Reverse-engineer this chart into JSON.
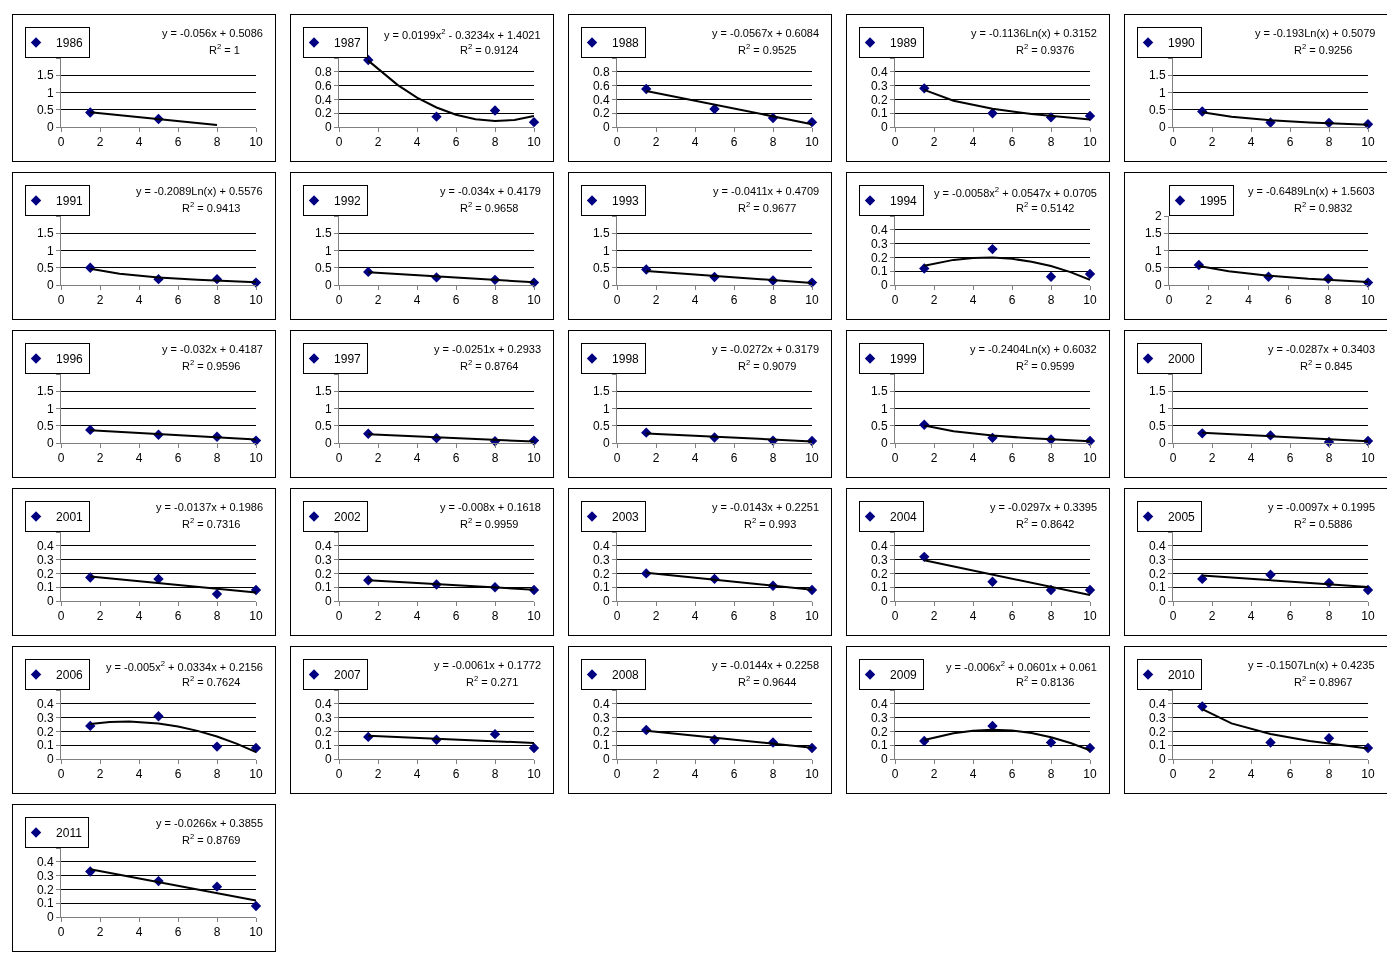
{
  "chart_data": [
    {
      "type": "scatter",
      "xlim": [
        0,
        10
      ],
      "xticks": [
        0,
        2,
        4,
        6,
        8,
        10
      ],
      "ylim": [
        0,
        2
      ],
      "yticks": [
        0,
        0.5,
        1,
        1.5,
        {
          "value": 2,
          "label": null
        }
      ],
      "grid": "y",
      "legend": "top left",
      "annotations": [
        "y = -0.056x + 0.5086",
        "R$^{2}$ = 1"
      ],
      "series": [
        {
          "name": "1986",
          "type": "scatter",
          "marker": "diamond",
          "color": "#000080",
          "x": [
            1.5,
            5
          ],
          "values": [
            0.42,
            0.23
          ]
        },
        {
          "type": "line",
          "color": "#000000",
          "x": [
            1.5,
            8
          ],
          "values": [
            0.425,
            0.061
          ]
        }
      ]
    },
    {
      "type": "scatter",
      "xlim": [
        0,
        10
      ],
      "xticks": [
        0,
        2,
        4,
        6,
        8,
        10
      ],
      "ylim": [
        0,
        1
      ],
      "yticks": [
        0,
        0.2,
        0.4,
        0.6,
        0.8,
        {
          "value": 1,
          "label": null
        }
      ],
      "grid": "y",
      "legend": "top left",
      "annotations": [
        "y = 0.0199x$^{2}$ - 0.3234x + 1.4021",
        "R$^{2}$ = 0.9124"
      ],
      "series": [
        {
          "name": "1987",
          "type": "scatter",
          "marker": "diamond",
          "color": "#000080",
          "x": [
            1.5,
            5,
            8,
            10
          ],
          "values": [
            0.97,
            0.15,
            0.24,
            0.07
          ]
        },
        {
          "type": "line",
          "color": "#000000",
          "x": [
            1.5,
            3,
            4,
            5,
            6,
            7,
            8,
            9,
            10
          ],
          "values": [
            0.962,
            0.611,
            0.427,
            0.283,
            0.178,
            0.113,
            0.088,
            0.103,
            0.158
          ]
        }
      ]
    },
    {
      "type": "scatter",
      "xlim": [
        0,
        10
      ],
      "xticks": [
        0,
        2,
        4,
        6,
        8,
        10
      ],
      "ylim": [
        0,
        1
      ],
      "yticks": [
        0,
        0.2,
        0.4,
        0.6,
        0.8,
        {
          "value": 1,
          "label": null
        }
      ],
      "grid": "y",
      "legend": "top left",
      "annotations": [
        "y = -0.0567x + 0.6084",
        "R$^{2}$ = 0.9525"
      ],
      "series": [
        {
          "name": "1988",
          "type": "scatter",
          "marker": "diamond",
          "color": "#000080",
          "x": [
            1.5,
            5,
            8,
            10
          ],
          "values": [
            0.55,
            0.26,
            0.13,
            0.07
          ]
        },
        {
          "type": "line",
          "color": "#000000",
          "x": [
            1.5,
            10
          ],
          "values": [
            0.523,
            0.041
          ]
        }
      ]
    },
    {
      "type": "scatter",
      "xlim": [
        0,
        10
      ],
      "xticks": [
        0,
        2,
        4,
        6,
        8,
        10
      ],
      "ylim": [
        0,
        0.5
      ],
      "yticks": [
        0,
        0.1,
        0.2,
        0.3,
        0.4,
        {
          "value": 0.5,
          "label": null
        }
      ],
      "grid": "y",
      "legend": "top left",
      "annotations": [
        "y = -0.1136Ln(x) + 0.3152",
        "R$^{2}$ = 0.9376"
      ],
      "series": [
        {
          "name": "1989",
          "type": "scatter",
          "marker": "diamond",
          "color": "#000080",
          "x": [
            1.5,
            5,
            8,
            10
          ],
          "values": [
            0.28,
            0.1,
            0.07,
            0.08
          ]
        },
        {
          "type": "line",
          "color": "#000000",
          "x": [
            1.5,
            3,
            5,
            7,
            10
          ],
          "values": [
            0.269,
            0.19,
            0.132,
            0.094,
            0.054
          ]
        }
      ]
    },
    {
      "type": "scatter",
      "xlim": [
        0,
        10
      ],
      "xticks": [
        0,
        2,
        4,
        6,
        8,
        10
      ],
      "ylim": [
        0,
        2
      ],
      "yticks": [
        0,
        0.5,
        1,
        1.5,
        {
          "value": 2,
          "label": null
        }
      ],
      "grid": "y",
      "legend": "top left",
      "annotations": [
        "y = -0.193Ln(x) + 0.5079",
        "R$^{2}$ = 0.9256"
      ],
      "series": [
        {
          "name": "1990",
          "type": "scatter",
          "marker": "diamond",
          "color": "#000080",
          "x": [
            1.5,
            5,
            8,
            10
          ],
          "values": [
            0.45,
            0.13,
            0.12,
            0.08
          ]
        },
        {
          "type": "line",
          "color": "#000000",
          "x": [
            1.5,
            3,
            5,
            7,
            10
          ],
          "values": [
            0.43,
            0.296,
            0.197,
            0.132,
            0.063
          ]
        }
      ]
    },
    {
      "type": "scatter",
      "xlim": [
        0,
        10
      ],
      "xticks": [
        0,
        2,
        4,
        6,
        8,
        10
      ],
      "ylim": [
        0,
        2
      ],
      "yticks": [
        0,
        0.5,
        1,
        1.5,
        {
          "value": 2,
          "label": null
        }
      ],
      "grid": "y",
      "legend": "top left",
      "annotations": [
        "y = -0.2089Ln(x) + 0.5576",
        "R$^{2}$ = 0.9413"
      ],
      "series": [
        {
          "name": "1991",
          "type": "scatter",
          "marker": "diamond",
          "color": "#000080",
          "x": [
            1.5,
            5,
            8,
            10
          ],
          "values": [
            0.5,
            0.17,
            0.17,
            0.07
          ]
        },
        {
          "type": "line",
          "color": "#000000",
          "x": [
            1.5,
            3,
            5,
            7,
            10
          ],
          "values": [
            0.473,
            0.328,
            0.221,
            0.151,
            0.077
          ]
        }
      ]
    },
    {
      "type": "scatter",
      "xlim": [
        0,
        10
      ],
      "xticks": [
        0,
        2,
        4,
        6,
        8,
        10
      ],
      "ylim": [
        0,
        2
      ],
      "yticks": [
        0,
        0.5,
        1,
        1.5,
        {
          "value": 2,
          "label": null
        }
      ],
      "grid": "y",
      "legend": "top left",
      "annotations": [
        "y = -0.034x + 0.4179",
        "R$^{2}$ = 0.9658"
      ],
      "series": [
        {
          "name": "1992",
          "type": "scatter",
          "marker": "diamond",
          "color": "#000080",
          "x": [
            1.5,
            5,
            8,
            10
          ],
          "values": [
            0.38,
            0.22,
            0.15,
            0.07
          ]
        },
        {
          "type": "line",
          "color": "#000000",
          "x": [
            1.5,
            10
          ],
          "values": [
            0.367,
            0.078
          ]
        }
      ]
    },
    {
      "type": "scatter",
      "xlim": [
        0,
        10
      ],
      "xticks": [
        0,
        2,
        4,
        6,
        8,
        10
      ],
      "ylim": [
        0,
        2
      ],
      "yticks": [
        0,
        0.5,
        1,
        1.5,
        {
          "value": 2,
          "label": null
        }
      ],
      "grid": "y",
      "legend": "top left",
      "annotations": [
        "y = -0.0411x + 0.4709",
        "R$^{2}$ = 0.9677"
      ],
      "series": [
        {
          "name": "1993",
          "type": "scatter",
          "marker": "diamond",
          "color": "#000080",
          "x": [
            1.5,
            5,
            8,
            10
          ],
          "values": [
            0.45,
            0.23,
            0.13,
            0.07
          ]
        },
        {
          "type": "line",
          "color": "#000000",
          "x": [
            1.5,
            10
          ],
          "values": [
            0.409,
            0.059
          ]
        }
      ]
    },
    {
      "type": "scatter",
      "xlim": [
        0,
        10
      ],
      "xticks": [
        0,
        2,
        4,
        6,
        8,
        10
      ],
      "ylim": [
        0,
        0.5
      ],
      "yticks": [
        0,
        0.1,
        0.2,
        0.3,
        0.4,
        {
          "value": 0.5,
          "label": null
        }
      ],
      "grid": "y",
      "legend": "top left",
      "annotations": [
        "y = -0.0058x$^{2}$ + 0.0547x + 0.0705",
        "R$^{2}$ = 0.5142"
      ],
      "series": [
        {
          "name": "1994",
          "type": "scatter",
          "marker": "diamond",
          "color": "#000080",
          "x": [
            1.5,
            5,
            8,
            10
          ],
          "values": [
            0.12,
            0.26,
            0.06,
            0.08
          ]
        },
        {
          "type": "line",
          "color": "#000000",
          "x": [
            1.5,
            3,
            4,
            5,
            6,
            7,
            8,
            9,
            10
          ],
          "values": [
            0.139,
            0.182,
            0.196,
            0.199,
            0.19,
            0.169,
            0.137,
            0.093,
            0.038
          ]
        }
      ]
    },
    {
      "type": "scatter",
      "xlim": [
        0,
        10
      ],
      "xticks": [
        0,
        2,
        4,
        6,
        8,
        10
      ],
      "ylim": [
        0,
        2
      ],
      "yticks": [
        0,
        0.5,
        1,
        1.5,
        2
      ],
      "grid": "y",
      "legend": "top left",
      "annotations": [
        "y = -0.6489Ln(x) + 1.5603",
        "R$^{2}$ = 0.9832"
      ],
      "series": [
        {
          "name": "1995",
          "type": "scatter",
          "marker": "diamond",
          "color": "#000080",
          "x": [
            1.5,
            5,
            8,
            10
          ],
          "values": [
            0.58,
            0.24,
            0.18,
            0.07
          ]
        },
        {
          "type": "line",
          "color": "#000000",
          "x": [
            1.5,
            3,
            5,
            7,
            10
          ],
          "values": [
            0.55,
            0.4,
            0.27,
            0.18,
            0.09
          ]
        }
      ]
    },
    {
      "type": "scatter",
      "xlim": [
        0,
        10
      ],
      "xticks": [
        0,
        2,
        4,
        6,
        8,
        10
      ],
      "ylim": [
        0,
        2
      ],
      "yticks": [
        0,
        0.5,
        1,
        1.5,
        {
          "value": 2,
          "label": null
        }
      ],
      "grid": "y",
      "legend": "top left",
      "annotations": [
        "y = -0.032x + 0.4187",
        "R$^{2}$ = 0.9596"
      ],
      "series": [
        {
          "name": "1996",
          "type": "scatter",
          "marker": "diamond",
          "color": "#000080",
          "x": [
            1.5,
            5,
            8,
            10
          ],
          "values": [
            0.38,
            0.24,
            0.18,
            0.07
          ]
        },
        {
          "type": "line",
          "color": "#000000",
          "x": [
            1.5,
            10
          ],
          "values": [
            0.371,
            0.099
          ]
        }
      ]
    },
    {
      "type": "scatter",
      "xlim": [
        0,
        10
      ],
      "xticks": [
        0,
        2,
        4,
        6,
        8,
        10
      ],
      "ylim": [
        0,
        2
      ],
      "yticks": [
        0,
        0.5,
        1,
        1.5,
        {
          "value": 2,
          "label": null
        }
      ],
      "grid": "y",
      "legend": "top left",
      "annotations": [
        "y = -0.0251x + 0.2933",
        "R$^{2}$ = 0.8764"
      ],
      "series": [
        {
          "name": "1997",
          "type": "scatter",
          "marker": "diamond",
          "color": "#000080",
          "x": [
            1.5,
            5,
            8,
            10
          ],
          "values": [
            0.27,
            0.14,
            0.05,
            0.07
          ]
        },
        {
          "type": "line",
          "color": "#000000",
          "x": [
            1.5,
            10
          ],
          "values": [
            0.256,
            0.042
          ]
        }
      ]
    },
    {
      "type": "scatter",
      "xlim": [
        0,
        10
      ],
      "xticks": [
        0,
        2,
        4,
        6,
        8,
        10
      ],
      "ylim": [
        0,
        2
      ],
      "yticks": [
        0,
        0.5,
        1,
        1.5,
        {
          "value": 2,
          "label": null
        }
      ],
      "grid": "y",
      "legend": "top left",
      "annotations": [
        "y = -0.0272x + 0.3179",
        "R$^{2}$ = 0.9079"
      ],
      "series": [
        {
          "name": "1998",
          "type": "scatter",
          "marker": "diamond",
          "color": "#000080",
          "x": [
            1.5,
            5,
            8,
            10
          ],
          "values": [
            0.3,
            0.16,
            0.07,
            0.06
          ]
        },
        {
          "type": "line",
          "color": "#000000",
          "x": [
            1.5,
            10
          ],
          "values": [
            0.277,
            0.046
          ]
        }
      ]
    },
    {
      "type": "scatter",
      "xlim": [
        0,
        10
      ],
      "xticks": [
        0,
        2,
        4,
        6,
        8,
        10
      ],
      "ylim": [
        0,
        2
      ],
      "yticks": [
        0,
        0.5,
        1,
        1.5,
        {
          "value": 2,
          "label": null
        }
      ],
      "grid": "y",
      "legend": "top left",
      "annotations": [
        "y = -0.2404Ln(x) + 0.6032",
        "R$^{2}$ = 0.9599"
      ],
      "series": [
        {
          "name": "1999",
          "type": "scatter",
          "marker": "diamond",
          "color": "#000080",
          "x": [
            1.5,
            5,
            8,
            10
          ],
          "values": [
            0.53,
            0.15,
            0.1,
            0.06
          ]
        },
        {
          "type": "line",
          "color": "#000000",
          "x": [
            1.5,
            3,
            5,
            7,
            10
          ],
          "values": [
            0.506,
            0.339,
            0.216,
            0.135,
            0.05
          ]
        }
      ]
    },
    {
      "type": "scatter",
      "xlim": [
        0,
        10
      ],
      "xticks": [
        0,
        2,
        4,
        6,
        8,
        10
      ],
      "ylim": [
        0,
        2
      ],
      "yticks": [
        0,
        0.5,
        1,
        1.5,
        {
          "value": 2,
          "label": null
        }
      ],
      "grid": "y",
      "legend": "top left",
      "annotations": [
        "y = -0.0287x + 0.3403",
        "R$^{2}$ = 0.845"
      ],
      "series": [
        {
          "name": "2000",
          "type": "scatter",
          "marker": "diamond",
          "color": "#000080",
          "x": [
            1.5,
            5,
            8,
            10
          ],
          "values": [
            0.28,
            0.22,
            0.03,
            0.06
          ]
        },
        {
          "type": "line",
          "color": "#000000",
          "x": [
            1.5,
            10
          ],
          "values": [
            0.297,
            0.053
          ]
        }
      ]
    },
    {
      "type": "scatter",
      "xlim": [
        0,
        10
      ],
      "xticks": [
        0,
        2,
        4,
        6,
        8,
        10
      ],
      "ylim": [
        0,
        0.5
      ],
      "yticks": [
        0,
        0.1,
        0.2,
        0.3,
        0.4,
        {
          "value": 0.5,
          "label": null
        }
      ],
      "grid": "y",
      "legend": "top left",
      "annotations": [
        "y = -0.0137x + 0.1986",
        "R$^{2}$ = 0.7316"
      ],
      "series": [
        {
          "name": "2001",
          "type": "scatter",
          "marker": "diamond",
          "color": "#000080",
          "x": [
            1.5,
            5,
            8,
            10
          ],
          "values": [
            0.17,
            0.16,
            0.05,
            0.08
          ]
        },
        {
          "type": "line",
          "color": "#000000",
          "x": [
            1.5,
            10
          ],
          "values": [
            0.178,
            0.062
          ]
        }
      ]
    },
    {
      "type": "scatter",
      "xlim": [
        0,
        10
      ],
      "xticks": [
        0,
        2,
        4,
        6,
        8,
        10
      ],
      "ylim": [
        0,
        0.5
      ],
      "yticks": [
        0,
        0.1,
        0.2,
        0.3,
        0.4,
        {
          "value": 0.5,
          "label": null
        }
      ],
      "grid": "y",
      "legend": "top left",
      "annotations": [
        "y = -0.008x + 0.1618",
        "R$^{2}$ = 0.9959"
      ],
      "series": [
        {
          "name": "2002",
          "type": "scatter",
          "marker": "diamond",
          "color": "#000080",
          "x": [
            1.5,
            5,
            8,
            10
          ],
          "values": [
            0.15,
            0.12,
            0.1,
            0.08
          ]
        },
        {
          "type": "line",
          "color": "#000000",
          "x": [
            1.5,
            10
          ],
          "values": [
            0.15,
            0.082
          ]
        }
      ]
    },
    {
      "type": "scatter",
      "xlim": [
        0,
        10
      ],
      "xticks": [
        0,
        2,
        4,
        6,
        8,
        10
      ],
      "ylim": [
        0,
        0.5
      ],
      "yticks": [
        0,
        0.1,
        0.2,
        0.3,
        0.4,
        {
          "value": 0.5,
          "label": null
        }
      ],
      "grid": "y",
      "legend": "top left",
      "annotations": [
        "y = -0.0143x + 0.2251",
        "R$^{2}$ = 0.993"
      ],
      "series": [
        {
          "name": "2003",
          "type": "scatter",
          "marker": "diamond",
          "color": "#000080",
          "x": [
            1.5,
            5,
            8,
            10
          ],
          "values": [
            0.2,
            0.16,
            0.11,
            0.08
          ]
        },
        {
          "type": "line",
          "color": "#000000",
          "x": [
            1.5,
            10
          ],
          "values": [
            0.204,
            0.082
          ]
        }
      ]
    },
    {
      "type": "scatter",
      "xlim": [
        0,
        10
      ],
      "xticks": [
        0,
        2,
        4,
        6,
        8,
        10
      ],
      "ylim": [
        0,
        0.5
      ],
      "yticks": [
        0,
        0.1,
        0.2,
        0.3,
        0.4,
        {
          "value": 0.5,
          "label": null
        }
      ],
      "grid": "y",
      "legend": "top left",
      "annotations": [
        "y = -0.0297x + 0.3395",
        "R$^{2}$ = 0.8642"
      ],
      "series": [
        {
          "name": "2004",
          "type": "scatter",
          "marker": "diamond",
          "color": "#000080",
          "x": [
            1.5,
            5,
            8,
            10
          ],
          "values": [
            0.32,
            0.14,
            0.08,
            0.08
          ]
        },
        {
          "type": "line",
          "color": "#000000",
          "x": [
            1.5,
            10
          ],
          "values": [
            0.295,
            0.043
          ]
        }
      ]
    },
    {
      "type": "scatter",
      "xlim": [
        0,
        10
      ],
      "xticks": [
        0,
        2,
        4,
        6,
        8,
        10
      ],
      "ylim": [
        0,
        0.5
      ],
      "yticks": [
        0,
        0.1,
        0.2,
        0.3,
        0.4,
        {
          "value": 0.5,
          "label": null
        }
      ],
      "grid": "y",
      "legend": "top left",
      "annotations": [
        "y = -0.0097x + 0.1995",
        "R$^{2}$ = 0.5886"
      ],
      "series": [
        {
          "name": "2005",
          "type": "scatter",
          "marker": "diamond",
          "color": "#000080",
          "x": [
            1.5,
            5,
            8,
            10
          ],
          "values": [
            0.16,
            0.19,
            0.13,
            0.08
          ]
        },
        {
          "type": "line",
          "color": "#000000",
          "x": [
            1.5,
            10
          ],
          "values": [
            0.185,
            0.102
          ]
        }
      ]
    },
    {
      "type": "scatter",
      "xlim": [
        0,
        10
      ],
      "xticks": [
        0,
        2,
        4,
        6,
        8,
        10
      ],
      "ylim": [
        0,
        0.5
      ],
      "yticks": [
        0,
        0.1,
        0.2,
        0.3,
        0.4,
        {
          "value": 0.5,
          "label": null
        }
      ],
      "grid": "y",
      "legend": "top left",
      "annotations": [
        "y = -0.005x$^{2}$ + 0.0334x + 0.2156",
        "R$^{2}$ = 0.7624"
      ],
      "series": [
        {
          "name": "2006",
          "type": "scatter",
          "marker": "diamond",
          "color": "#000080",
          "x": [
            1.5,
            5,
            8,
            10
          ],
          "values": [
            0.24,
            0.31,
            0.09,
            0.08
          ]
        },
        {
          "type": "line",
          "color": "#000000",
          "x": [
            1.5,
            2.5,
            3.5,
            5,
            6,
            7,
            8,
            9,
            10
          ],
          "values": [
            0.254,
            0.268,
            0.271,
            0.258,
            0.236,
            0.204,
            0.163,
            0.111,
            0.05
          ]
        }
      ]
    },
    {
      "type": "scatter",
      "xlim": [
        0,
        10
      ],
      "xticks": [
        0,
        2,
        4,
        6,
        8,
        10
      ],
      "ylim": [
        0,
        0.5
      ],
      "yticks": [
        0,
        0.1,
        0.2,
        0.3,
        0.4,
        {
          "value": 0.5,
          "label": null
        }
      ],
      "grid": "y",
      "legend": "top left",
      "annotations": [
        "y = -0.0061x + 0.1772",
        "R$^{2}$ = 0.271"
      ],
      "series": [
        {
          "name": "2007",
          "type": "scatter",
          "marker": "diamond",
          "color": "#000080",
          "x": [
            1.5,
            5,
            8,
            10
          ],
          "values": [
            0.16,
            0.14,
            0.18,
            0.08
          ]
        },
        {
          "type": "line",
          "color": "#000000",
          "x": [
            1.5,
            10
          ],
          "values": [
            0.168,
            0.116
          ]
        }
      ]
    },
    {
      "type": "scatter",
      "xlim": [
        0,
        10
      ],
      "xticks": [
        0,
        2,
        4,
        6,
        8,
        10
      ],
      "ylim": [
        0,
        0.5
      ],
      "yticks": [
        0,
        0.1,
        0.2,
        0.3,
        0.4,
        {
          "value": 0.5,
          "label": null
        }
      ],
      "grid": "y",
      "legend": "top left",
      "annotations": [
        "y = -0.0144x + 0.2258",
        "R$^{2}$ = 0.9644"
      ],
      "series": [
        {
          "name": "2008",
          "type": "scatter",
          "marker": "diamond",
          "color": "#000080",
          "x": [
            1.5,
            5,
            8,
            10
          ],
          "values": [
            0.21,
            0.14,
            0.12,
            0.08
          ]
        },
        {
          "type": "line",
          "color": "#000000",
          "x": [
            1.5,
            10
          ],
          "values": [
            0.204,
            0.082
          ]
        }
      ]
    },
    {
      "type": "scatter",
      "xlim": [
        0,
        10
      ],
      "xticks": [
        0,
        2,
        4,
        6,
        8,
        10
      ],
      "ylim": [
        0,
        0.5
      ],
      "yticks": [
        0,
        0.1,
        0.2,
        0.3,
        0.4,
        {
          "value": 0.5,
          "label": null
        }
      ],
      "grid": "y",
      "legend": "top left",
      "annotations": [
        "y = -0.006x$^{2}$ + 0.0601x + 0.061",
        "R$^{2}$ = 0.8136"
      ],
      "series": [
        {
          "name": "2009",
          "type": "scatter",
          "marker": "diamond",
          "color": "#000080",
          "x": [
            1.5,
            5,
            8,
            10
          ],
          "values": [
            0.13,
            0.24,
            0.12,
            0.08
          ]
        },
        {
          "type": "line",
          "color": "#000000",
          "x": [
            1.5,
            3,
            4,
            5,
            6,
            7,
            8,
            9,
            10
          ],
          "values": [
            0.138,
            0.187,
            0.205,
            0.2115,
            0.206,
            0.188,
            0.158,
            0.116,
            0.062
          ]
        }
      ]
    },
    {
      "type": "scatter",
      "xlim": [
        0,
        10
      ],
      "xticks": [
        0,
        2,
        4,
        6,
        8,
        10
      ],
      "ylim": [
        0,
        0.5
      ],
      "yticks": [
        0,
        0.1,
        0.2,
        0.3,
        0.4,
        {
          "value": 0.5,
          "label": null
        }
      ],
      "grid": "y",
      "legend": "top left",
      "annotations": [
        "y = -0.1507Ln(x) + 0.4235",
        "R$^{2}$ = 0.8967"
      ],
      "series": [
        {
          "name": "2010",
          "type": "scatter",
          "marker": "diamond",
          "color": "#000080",
          "x": [
            1.5,
            5,
            8,
            10
          ],
          "values": [
            0.38,
            0.12,
            0.15,
            0.08
          ]
        },
        {
          "type": "line",
          "color": "#000000",
          "x": [
            1.5,
            3,
            5,
            7,
            10
          ],
          "values": [
            0.362,
            0.258,
            0.181,
            0.13,
            0.076
          ]
        }
      ]
    },
    {
      "type": "scatter",
      "xlim": [
        0,
        10
      ],
      "xticks": [
        0,
        2,
        4,
        6,
        8,
        10
      ],
      "ylim": [
        0,
        0.5
      ],
      "yticks": [
        0,
        0.1,
        0.2,
        0.3,
        0.4,
        {
          "value": 0.5,
          "label": null
        }
      ],
      "grid": "y",
      "legend": "top left",
      "annotations": [
        "y = -0.0266x + 0.3855",
        "R$^{2}$ = 0.8769"
      ],
      "series": [
        {
          "name": "2011",
          "type": "scatter",
          "marker": "diamond",
          "color": "#000080",
          "x": [
            1.5,
            5,
            8,
            10
          ],
          "values": [
            0.33,
            0.26,
            0.22,
            0.08
          ]
        },
        {
          "type": "line",
          "color": "#000000",
          "x": [
            1.5,
            10
          ],
          "values": [
            0.346,
            0.119
          ]
        }
      ]
    }
  ]
}
